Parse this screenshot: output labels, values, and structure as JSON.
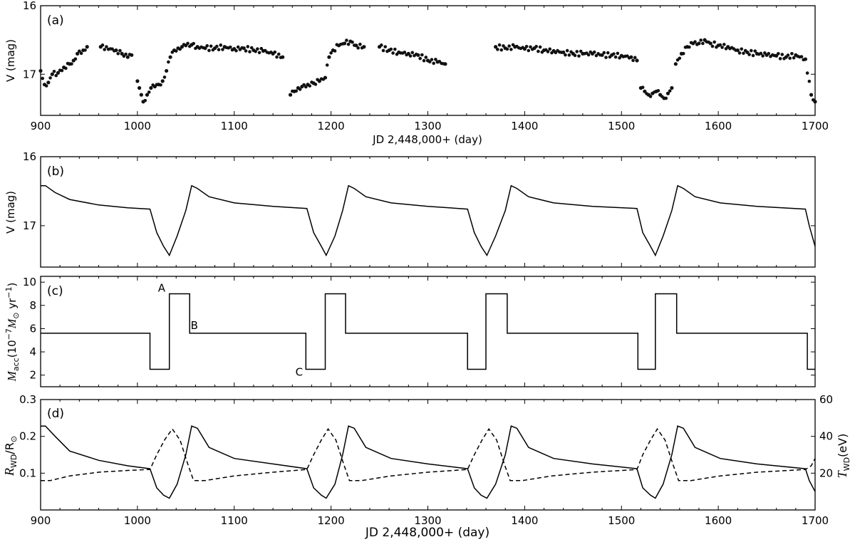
{
  "chart_data": [
    {
      "panel": "a",
      "type": "scatter",
      "panel_label": "(a)",
      "xlabel": "JD 2,448,000+ (day)",
      "ylabel": "V (mag)",
      "xlim": [
        900,
        1700
      ],
      "ylim": [
        17.6,
        16.0
      ],
      "y_inverted": true,
      "xticks": [
        "900",
        "1000",
        "1100",
        "1200",
        "1300",
        "1400",
        "1500",
        "1600",
        "1700"
      ],
      "yticks": [
        "16",
        "17"
      ],
      "series": [
        {
          "marker": "filled-circle",
          "segments": [
            {
              "x": [
                900,
                904,
                908,
                912,
                918,
                924,
                930,
                934,
                938,
                944,
                948
              ],
              "y": [
                16.95,
                17.15,
                17.12,
                17.0,
                16.98,
                16.9,
                16.85,
                16.8,
                16.7,
                16.65,
                16.6
              ]
            },
            {
              "x": [
                962,
                978,
                984,
                990,
                994
              ],
              "y": [
                16.6,
                16.65,
                16.7,
                16.75,
                16.72
              ]
            },
            {
              "x": [
                1000,
                1002,
                1004,
                1006,
                1010,
                1014,
                1018,
                1022,
                1026,
                1030,
                1034,
                1038,
                1042,
                1046,
                1050,
                1056,
                1062,
                1070,
                1080,
                1090,
                1100,
                1110,
                1120,
                1130,
                1140,
                1150
              ],
              "y": [
                17.1,
                17.2,
                17.3,
                17.4,
                17.3,
                17.2,
                17.18,
                17.15,
                17.1,
                16.95,
                16.75,
                16.65,
                16.62,
                16.6,
                16.58,
                16.57,
                16.6,
                16.62,
                16.62,
                16.6,
                16.63,
                16.62,
                16.65,
                16.66,
                16.7,
                16.75
              ]
            },
            {
              "x": [
                1158,
                1162,
                1166,
                1170,
                1176,
                1182,
                1188,
                1194,
                1198,
                1202,
                1208,
                1214,
                1220,
                1226,
                1234
              ],
              "y": [
                17.3,
                17.25,
                17.2,
                17.18,
                17.15,
                17.13,
                17.1,
                17.05,
                16.75,
                16.65,
                16.58,
                16.55,
                16.52,
                16.58,
                16.6
              ]
            },
            {
              "x": [
                1250,
                1260,
                1270,
                1280,
                1290,
                1300,
                1310,
                1318
              ],
              "y": [
                16.6,
                16.65,
                16.68,
                16.7,
                16.72,
                16.8,
                16.82,
                16.85
              ]
            },
            {
              "x": [
                1370,
                1380,
                1390,
                1400,
                1410,
                1420,
                1430,
                1440,
                1450,
                1460,
                1470,
                1480,
                1490,
                1500,
                1510,
                1516
              ],
              "y": [
                16.6,
                16.62,
                16.6,
                16.63,
                16.62,
                16.65,
                16.66,
                16.68,
                16.7,
                16.7,
                16.7,
                16.72,
                16.72,
                16.73,
                16.75,
                16.8
              ]
            },
            {
              "x": [
                1520,
                1524,
                1528,
                1532,
                1536,
                1540,
                1544,
                1548,
                1552
              ],
              "y": [
                17.2,
                17.25,
                17.3,
                17.28,
                17.25,
                17.3,
                17.35,
                17.28,
                17.2
              ]
            },
            {
              "x": [
                1556,
                1562,
                1568,
                1574,
                1580,
                1586,
                1592,
                1600,
                1610,
                1620,
                1630,
                1640,
                1650,
                1660,
                1670,
                1680,
                1690,
                1696,
                1700
              ],
              "y": [
                16.85,
                16.7,
                16.6,
                16.55,
                16.55,
                16.5,
                16.55,
                16.58,
                16.6,
                16.65,
                16.68,
                16.7,
                16.72,
                16.73,
                16.75,
                16.72,
                16.78,
                17.3,
                17.4
              ]
            }
          ]
        }
      ]
    },
    {
      "panel": "b",
      "type": "line",
      "panel_label": "(b)",
      "xlabel": "",
      "ylabel": "V (mag)",
      "xlim": [
        900,
        1700
      ],
      "ylim": [
        17.6,
        16.0
      ],
      "y_inverted": true,
      "xticks": [],
      "yticks": [
        "16",
        "17"
      ],
      "series": [
        {
          "style": "solid",
          "x": [
            900,
            905,
            915,
            930,
            960,
            990,
            1013,
            1020,
            1027,
            1033,
            1041,
            1050,
            1056,
            1062,
            1074,
            1100,
            1140,
            1175,
            1182,
            1190,
            1195,
            1204,
            1212,
            1218,
            1224,
            1236,
            1262,
            1300,
            1341,
            1348,
            1355,
            1361,
            1370,
            1380,
            1386,
            1392,
            1404,
            1430,
            1470,
            1516,
            1522,
            1530,
            1535,
            1543,
            1552,
            1558,
            1564,
            1576,
            1602,
            1640,
            1690,
            1694,
            1700
          ],
          "y": [
            16.42,
            16.42,
            16.52,
            16.62,
            16.7,
            16.74,
            16.76,
            17.1,
            17.3,
            17.43,
            17.15,
            16.78,
            16.42,
            16.46,
            16.58,
            16.67,
            16.72,
            16.75,
            17.1,
            17.3,
            17.43,
            17.15,
            16.78,
            16.42,
            16.46,
            16.58,
            16.67,
            16.72,
            16.76,
            17.1,
            17.3,
            17.43,
            17.15,
            16.78,
            16.42,
            16.46,
            16.58,
            16.67,
            16.72,
            16.75,
            17.1,
            17.3,
            17.43,
            17.15,
            16.78,
            16.42,
            16.46,
            16.58,
            16.67,
            16.72,
            16.76,
            17.0,
            17.3
          ]
        }
      ]
    },
    {
      "panel": "c",
      "type": "line",
      "panel_label": "(c)",
      "xlabel": "",
      "ylabel_parts": [
        "M",
        "acc",
        "(10",
        "−7",
        "M",
        "⊙",
        " yr",
        "−1",
        ")"
      ],
      "xlim": [
        900,
        1700
      ],
      "ylim": [
        1.0,
        10.5
      ],
      "xticks": [],
      "yticks": [
        "2",
        "4",
        "6",
        "8",
        "10"
      ],
      "annotations": [
        {
          "text": "A",
          "x": 1033,
          "y": 9.0
        },
        {
          "text": "B",
          "x": 1055,
          "y": 5.6
        },
        {
          "text": "C",
          "x": 1175,
          "y": 2.5
        }
      ],
      "series": [
        {
          "style": "solid",
          "x": [
            900,
            1013,
            1013,
            1033,
            1033,
            1054,
            1054,
            1174,
            1174,
            1194,
            1194,
            1215,
            1215,
            1341,
            1341,
            1360,
            1360,
            1382,
            1382,
            1517,
            1517,
            1535,
            1535,
            1557,
            1557,
            1692,
            1692,
            1700
          ],
          "y": [
            5.6,
            5.6,
            2.5,
            2.5,
            9.0,
            9.0,
            5.6,
            5.6,
            2.5,
            2.5,
            9.0,
            9.0,
            5.6,
            5.6,
            2.5,
            2.5,
            9.0,
            9.0,
            5.6,
            5.6,
            2.5,
            2.5,
            9.0,
            9.0,
            5.6,
            5.6,
            2.5,
            2.5
          ]
        }
      ]
    },
    {
      "panel": "d",
      "type": "line",
      "panel_label": "(d)",
      "xlabel": "JD 2,448,000+ (day)",
      "ylabel_left_parts": [
        "R",
        "WD",
        "/R",
        "⊙"
      ],
      "ylabel_right_parts": [
        "T",
        "WD",
        "(eV)"
      ],
      "xlim": [
        900,
        1700
      ],
      "ylim": [
        0.0,
        0.3
      ],
      "ylim_right": [
        0,
        60
      ],
      "xticks": [
        "900",
        "1000",
        "1100",
        "1200",
        "1300",
        "1400",
        "1500",
        "1600",
        "1700"
      ],
      "yticks": [
        "0.1",
        "0.2",
        "0.3"
      ],
      "yticks_right": [
        "20",
        "40",
        "60"
      ],
      "series": [
        {
          "axis": "left",
          "style": "solid",
          "x": [
            900,
            905,
            915,
            930,
            960,
            990,
            1013,
            1020,
            1027,
            1033,
            1041,
            1050,
            1056,
            1062,
            1074,
            1100,
            1140,
            1175,
            1182,
            1190,
            1195,
            1204,
            1212,
            1218,
            1224,
            1236,
            1262,
            1300,
            1341,
            1348,
            1355,
            1361,
            1370,
            1380,
            1386,
            1392,
            1404,
            1430,
            1470,
            1516,
            1522,
            1530,
            1535,
            1543,
            1552,
            1558,
            1564,
            1576,
            1602,
            1640,
            1690,
            1694,
            1700
          ],
          "y": [
            0.228,
            0.228,
            0.2,
            0.16,
            0.135,
            0.12,
            0.112,
            0.06,
            0.04,
            0.032,
            0.07,
            0.15,
            0.228,
            0.222,
            0.17,
            0.14,
            0.125,
            0.112,
            0.06,
            0.04,
            0.032,
            0.07,
            0.15,
            0.228,
            0.222,
            0.17,
            0.14,
            0.125,
            0.112,
            0.06,
            0.04,
            0.032,
            0.07,
            0.15,
            0.228,
            0.222,
            0.17,
            0.14,
            0.125,
            0.112,
            0.06,
            0.04,
            0.032,
            0.07,
            0.15,
            0.228,
            0.222,
            0.17,
            0.14,
            0.125,
            0.112,
            0.08,
            0.05
          ]
        },
        {
          "axis": "right",
          "style": "dashed",
          "x": [
            900,
            910,
            930,
            960,
            990,
            1013,
            1020,
            1028,
            1036,
            1044,
            1052,
            1058,
            1070,
            1100,
            1140,
            1175,
            1182,
            1190,
            1197,
            1205,
            1213,
            1219,
            1232,
            1262,
            1300,
            1341,
            1348,
            1356,
            1363,
            1371,
            1379,
            1385,
            1398,
            1428,
            1470,
            1516,
            1522,
            1530,
            1537,
            1545,
            1553,
            1559,
            1572,
            1602,
            1640,
            1690,
            1696,
            1700
          ],
          "y": [
            16,
            16,
            18.5,
            20.5,
            21.5,
            22,
            30,
            38,
            44,
            38,
            25,
            16,
            16,
            18.5,
            20.5,
            22,
            30,
            38,
            44,
            38,
            25,
            16,
            16,
            18.5,
            20.5,
            22,
            30,
            38,
            44,
            38,
            25,
            16,
            16,
            18.5,
            20.5,
            22,
            30,
            38,
            44,
            38,
            25,
            16,
            16,
            18.5,
            20.5,
            22,
            24,
            28
          ]
        }
      ]
    }
  ]
}
